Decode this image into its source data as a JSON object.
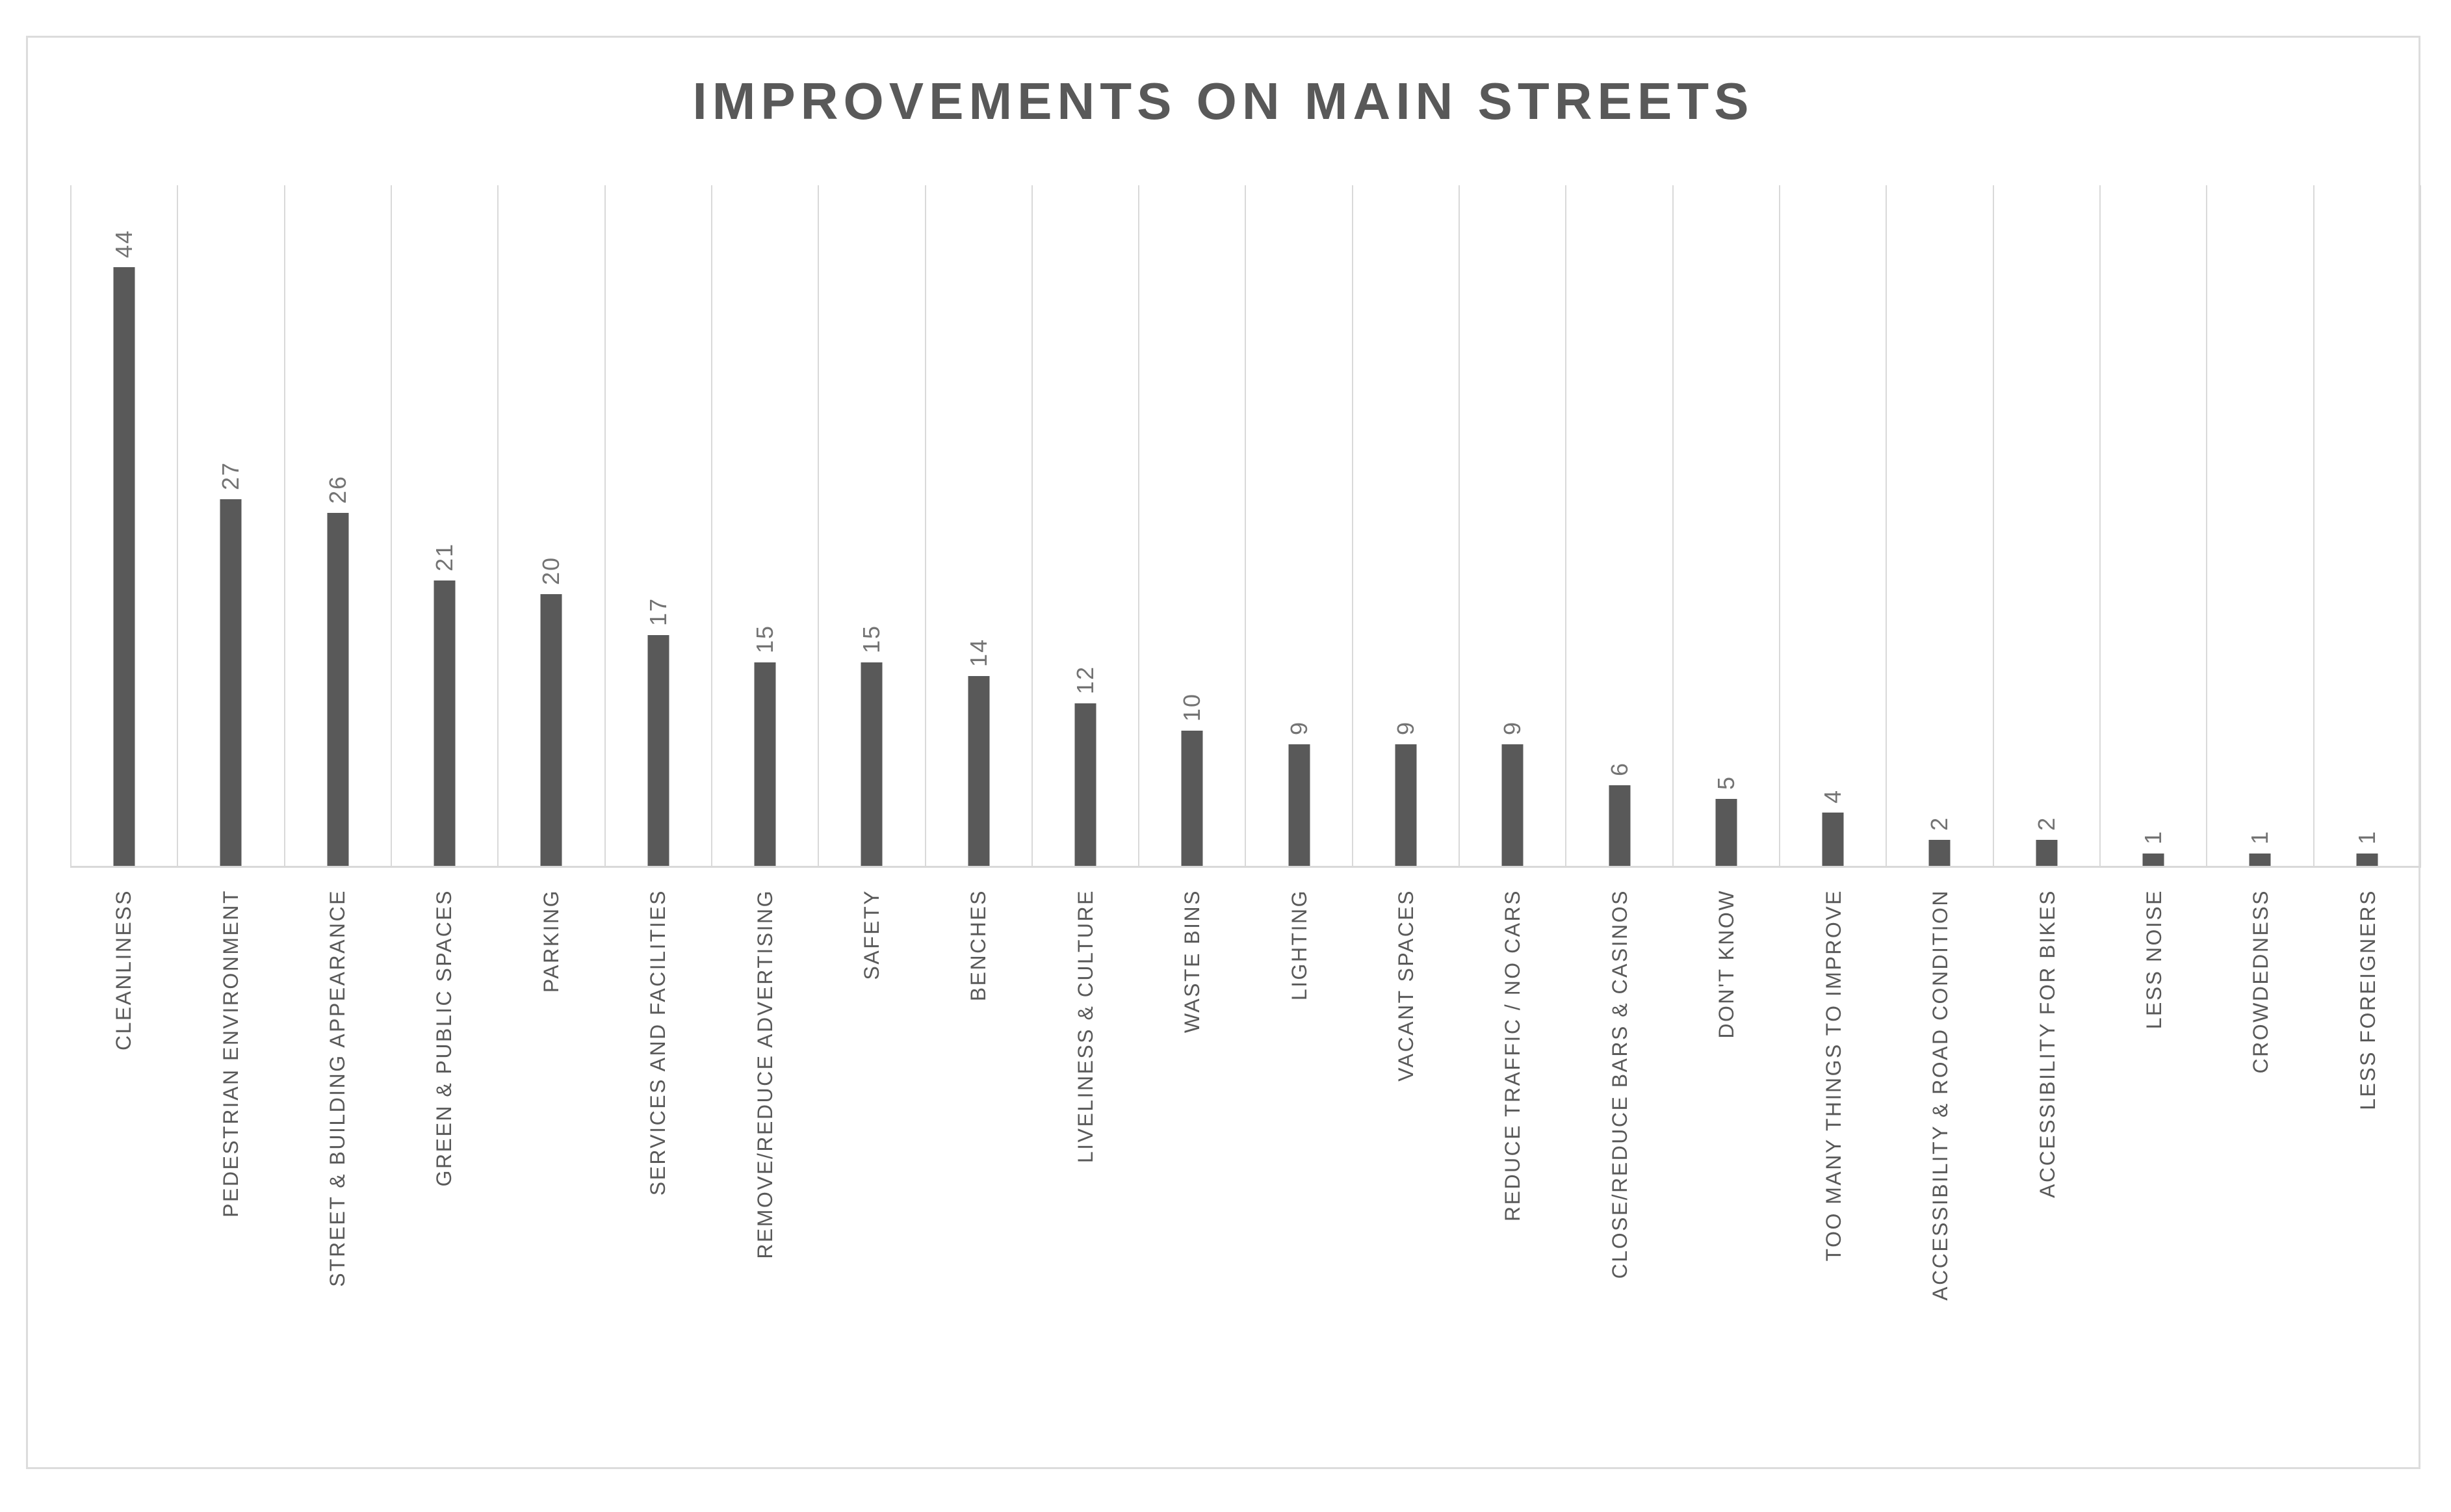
{
  "title": "IMPROVEMENTS ON MAIN STREETS",
  "chart_data": {
    "type": "bar",
    "title": "IMPROVEMENTS ON MAIN STREETS",
    "categories": [
      "CLEANLINESS",
      "PEDESTRIAN ENVIRONMENT",
      "STREET & BUILDING APPEARANCE",
      "GREEN & PUBLIC SPACES",
      "PARKING",
      "SERVICES AND FACILITIES",
      "REMOVE/REDUCE ADVERTISING",
      "SAFETY",
      "BENCHES",
      "LIVELINESS & CULTURE",
      "WASTE BINS",
      "LIGHTING",
      "VACANT SPACES",
      "REDUCE TRAFFIC / NO CARS",
      "CLOSE/REDUCE BARS & CASINOS",
      "DON'T KNOW",
      "TOO MANY THINGS TO IMPROVE",
      "ACCESSIBILITY & ROAD CONDITION",
      "ACCESSIBILITY FOR BIKES",
      "LESS NOISE",
      "CROWDEDNESS",
      "LESS FOREIGNERS"
    ],
    "values": [
      44,
      27,
      26,
      21,
      20,
      17,
      15,
      15,
      14,
      12,
      10,
      9,
      9,
      9,
      6,
      5,
      4,
      2,
      2,
      1,
      1,
      1
    ],
    "xlabel": "",
    "ylabel": "",
    "ylim": [
      0,
      50
    ],
    "grid": "vertical-category-separators",
    "legend_position": "none",
    "data_labels": "value shown rotated 90deg above each bar",
    "category_label_style": "rotated 90deg, reading bottom-to-top",
    "colors": {
      "bar": "#595959",
      "gridline": "#d9d9d9",
      "axis_line": "#d9d9d9",
      "frame_border": "#dcdcdc",
      "title": "#595959",
      "category_label": "#595959",
      "value_label": "#737373",
      "background": "#ffffff"
    }
  }
}
